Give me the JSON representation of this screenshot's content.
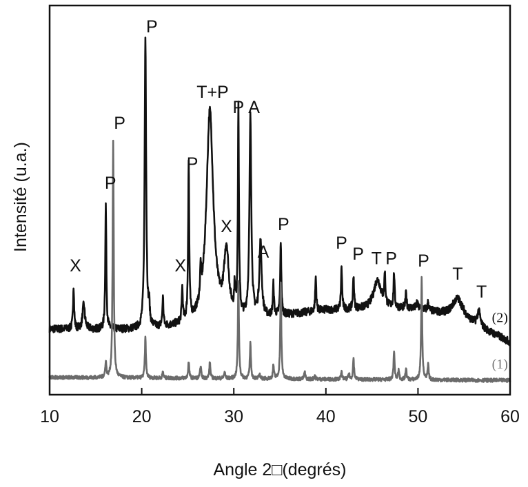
{
  "chart_data": {
    "type": "line",
    "title": "",
    "xlabel": "Angle 2□(degrés)",
    "ylabel": "Intensité (u.a.)",
    "xlim": [
      10,
      60
    ],
    "ylim": [
      0,
      100
    ],
    "xticks": [
      10,
      20,
      30,
      40,
      50,
      60
    ],
    "grid": false,
    "series": [
      {
        "name": "(2)",
        "color": "#111111",
        "baseline": [
          [
            10,
            16.7
          ],
          [
            20,
            16.5
          ],
          [
            30,
            18.5
          ],
          [
            40,
            21.5
          ],
          [
            50,
            22.0
          ],
          [
            55,
            19.0
          ],
          [
            60,
            13.3
          ]
        ],
        "peaks": [
          {
            "x": 12.6,
            "y": 27.8
          },
          {
            "x": 13.7,
            "y": 22.9,
            "w": 0.15
          },
          {
            "x": 16.1,
            "y": 48.8
          },
          {
            "x": 20.4,
            "y": 91.3,
            "w": 0.1
          },
          {
            "x": 20.8,
            "y": 21.6
          },
          {
            "x": 22.3,
            "y": 24.3
          },
          {
            "x": 24.4,
            "y": 26.1
          },
          {
            "x": 25.1,
            "y": 58.0
          },
          {
            "x": 26.4,
            "y": 25.2
          },
          {
            "x": 27.4,
            "y": 72.5,
            "w": 0.45
          },
          {
            "x": 29.2,
            "y": 35.5,
            "w": 0.3
          },
          {
            "x": 30.1,
            "y": 25.2
          },
          {
            "x": 30.5,
            "y": 71.6
          },
          {
            "x": 31.8,
            "y": 70.4,
            "w": 0.12
          },
          {
            "x": 32.9,
            "y": 38.5,
            "w": 0.15
          },
          {
            "x": 34.3,
            "y": 27.8
          },
          {
            "x": 35.1,
            "y": 39.0
          },
          {
            "x": 38.9,
            "y": 30.0
          },
          {
            "x": 41.7,
            "y": 32.6
          },
          {
            "x": 43.0,
            "y": 30.5
          },
          {
            "x": 45.6,
            "y": 29.3,
            "w": 0.5
          },
          {
            "x": 46.4,
            "y": 29.6
          },
          {
            "x": 47.4,
            "y": 30.7
          },
          {
            "x": 48.7,
            "y": 25.7
          },
          {
            "x": 49.9,
            "y": 23.4
          },
          {
            "x": 51.1,
            "y": 23.4
          },
          {
            "x": 54.3,
            "y": 24.5,
            "w": 0.7
          },
          {
            "x": 56.6,
            "y": 20.9,
            "w": 0.2
          },
          {
            "x": 58.7,
            "y": 14.9,
            "w": 0.4
          }
        ]
      },
      {
        "name": "(1)",
        "color": "#6b6b6b",
        "baseline": [
          [
            10,
            4.3
          ],
          [
            60,
            3.5
          ]
        ],
        "peaks": [
          {
            "x": 16.1,
            "y": 8.3
          },
          {
            "x": 16.9,
            "y": 65.1
          },
          {
            "x": 20.4,
            "y": 14.5
          },
          {
            "x": 22.3,
            "y": 5.7
          },
          {
            "x": 25.1,
            "y": 8.3
          },
          {
            "x": 26.4,
            "y": 7.4
          },
          {
            "x": 27.4,
            "y": 8.2
          },
          {
            "x": 29.0,
            "y": 5.7
          },
          {
            "x": 30.5,
            "y": 28.7
          },
          {
            "x": 31.8,
            "y": 13.1
          },
          {
            "x": 32.8,
            "y": 5.1
          },
          {
            "x": 34.3,
            "y": 7.4
          },
          {
            "x": 35.1,
            "y": 28.4
          },
          {
            "x": 37.7,
            "y": 5.7
          },
          {
            "x": 38.8,
            "y": 4.8
          },
          {
            "x": 41.7,
            "y": 5.7
          },
          {
            "x": 42.5,
            "y": 5.3
          },
          {
            "x": 43.0,
            "y": 9.2
          },
          {
            "x": 47.4,
            "y": 11.0
          },
          {
            "x": 47.9,
            "y": 6.2
          },
          {
            "x": 48.7,
            "y": 6.6
          },
          {
            "x": 50.4,
            "y": 29.8
          },
          {
            "x": 51.1,
            "y": 7.4
          }
        ]
      }
    ],
    "annotations": [
      {
        "text": "X",
        "x": 12.8,
        "y": 33.2
      },
      {
        "text": "P",
        "x": 16.6,
        "y": 54.4
      },
      {
        "text": "P",
        "x": 17.6,
        "y": 69.9
      },
      {
        "text": "P",
        "x": 21.1,
        "y": 94.7
      },
      {
        "text": "X",
        "x": 24.2,
        "y": 33.2
      },
      {
        "text": "P",
        "x": 25.5,
        "y": 59.4
      },
      {
        "text": "T+P",
        "x": 27.7,
        "y": 77.8
      },
      {
        "text": "P",
        "x": 30.5,
        "y": 73.9
      },
      {
        "text": "A",
        "x": 32.2,
        "y": 73.9
      },
      {
        "text": "X",
        "x": 29.2,
        "y": 43.3
      },
      {
        "text": "A",
        "x": 33.2,
        "y": 36.7
      },
      {
        "text": "P",
        "x": 35.4,
        "y": 43.8
      },
      {
        "text": "P",
        "x": 41.7,
        "y": 39.0
      },
      {
        "text": "P",
        "x": 43.5,
        "y": 36.2
      },
      {
        "text": "T",
        "x": 45.5,
        "y": 35.0
      },
      {
        "text": "P",
        "x": 47.1,
        "y": 35.0
      },
      {
        "text": "P",
        "x": 50.6,
        "y": 34.4
      },
      {
        "text": "T",
        "x": 54.3,
        "y": 31.0
      },
      {
        "text": "T",
        "x": 56.9,
        "y": 26.4
      }
    ],
    "series_labels": [
      {
        "text": "(2)",
        "x": 58.9,
        "y": 19.8,
        "color": "#111111"
      },
      {
        "text": "(1)",
        "x": 58.9,
        "y": 7.8,
        "color": "#777777"
      }
    ]
  }
}
